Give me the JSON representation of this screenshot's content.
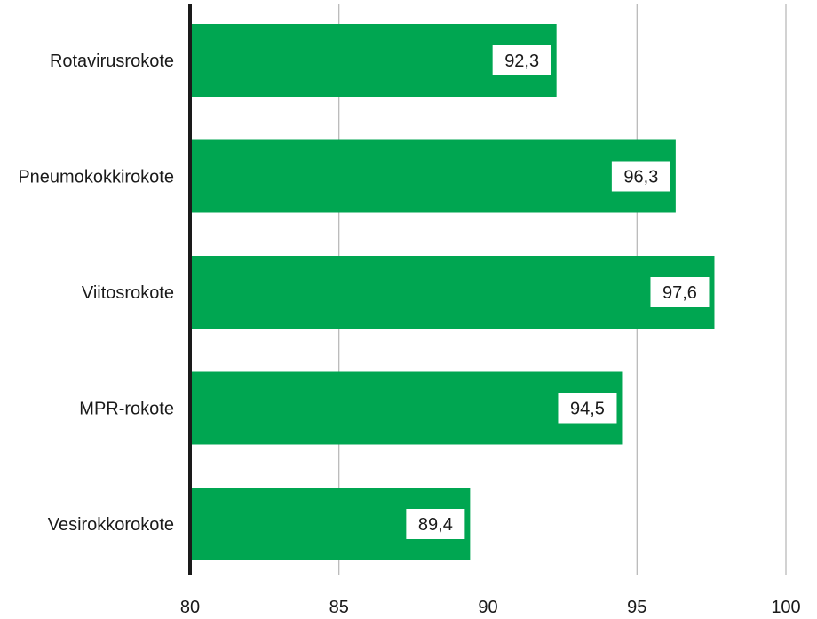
{
  "chart_data": {
    "type": "bar",
    "orientation": "horizontal",
    "categories": [
      "Rotavirusrokote",
      "Pneumokokkirokote",
      "Viitosrokote",
      "MPR-rokote",
      "Vesirokkorokote"
    ],
    "values": [
      92.3,
      96.3,
      97.6,
      94.5,
      89.4
    ],
    "data_labels": [
      "92,3",
      "96,3",
      "97,6",
      "94,5",
      "89,4"
    ],
    "xlim": [
      80,
      100
    ],
    "xticks": [
      80,
      85,
      90,
      95,
      100
    ],
    "xtick_labels": [
      "80",
      "85",
      "90",
      "95",
      "100"
    ],
    "grid": "vertical",
    "colors": {
      "bar": "#00a651",
      "grid": "#a6a6a6",
      "axis": "#1a1a1a",
      "label_box": "#ffffff"
    }
  }
}
